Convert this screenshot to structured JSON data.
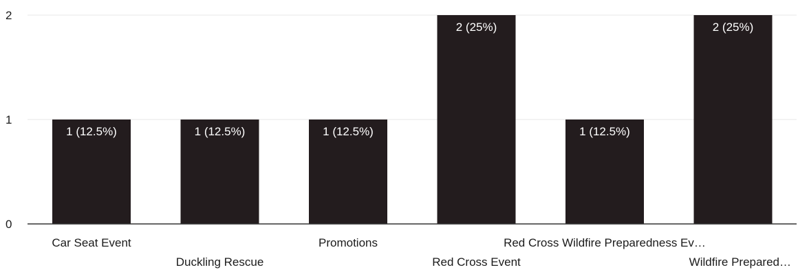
{
  "chart_data": {
    "type": "bar",
    "title": "",
    "xlabel": "",
    "ylabel": "",
    "ylim": [
      0,
      2
    ],
    "yticks": [
      0,
      1,
      2
    ],
    "grid": true,
    "legend": "none",
    "bar_color": "#231c1e",
    "label_color": "#ffffff",
    "categories": [
      "Car Seat Event",
      "Duckling Rescue",
      "Promotions",
      "Red Cross Event",
      "Red Cross Wildfire Preparedness Ev…",
      "Wildfire Prepared…"
    ],
    "values": [
      1,
      1,
      1,
      2,
      1,
      2
    ],
    "data_labels": [
      "1 (12.5%)",
      "1 (12.5%)",
      "1 (12.5%)",
      "2 (25%)",
      "1 (12.5%)",
      "2 (25%)"
    ]
  }
}
